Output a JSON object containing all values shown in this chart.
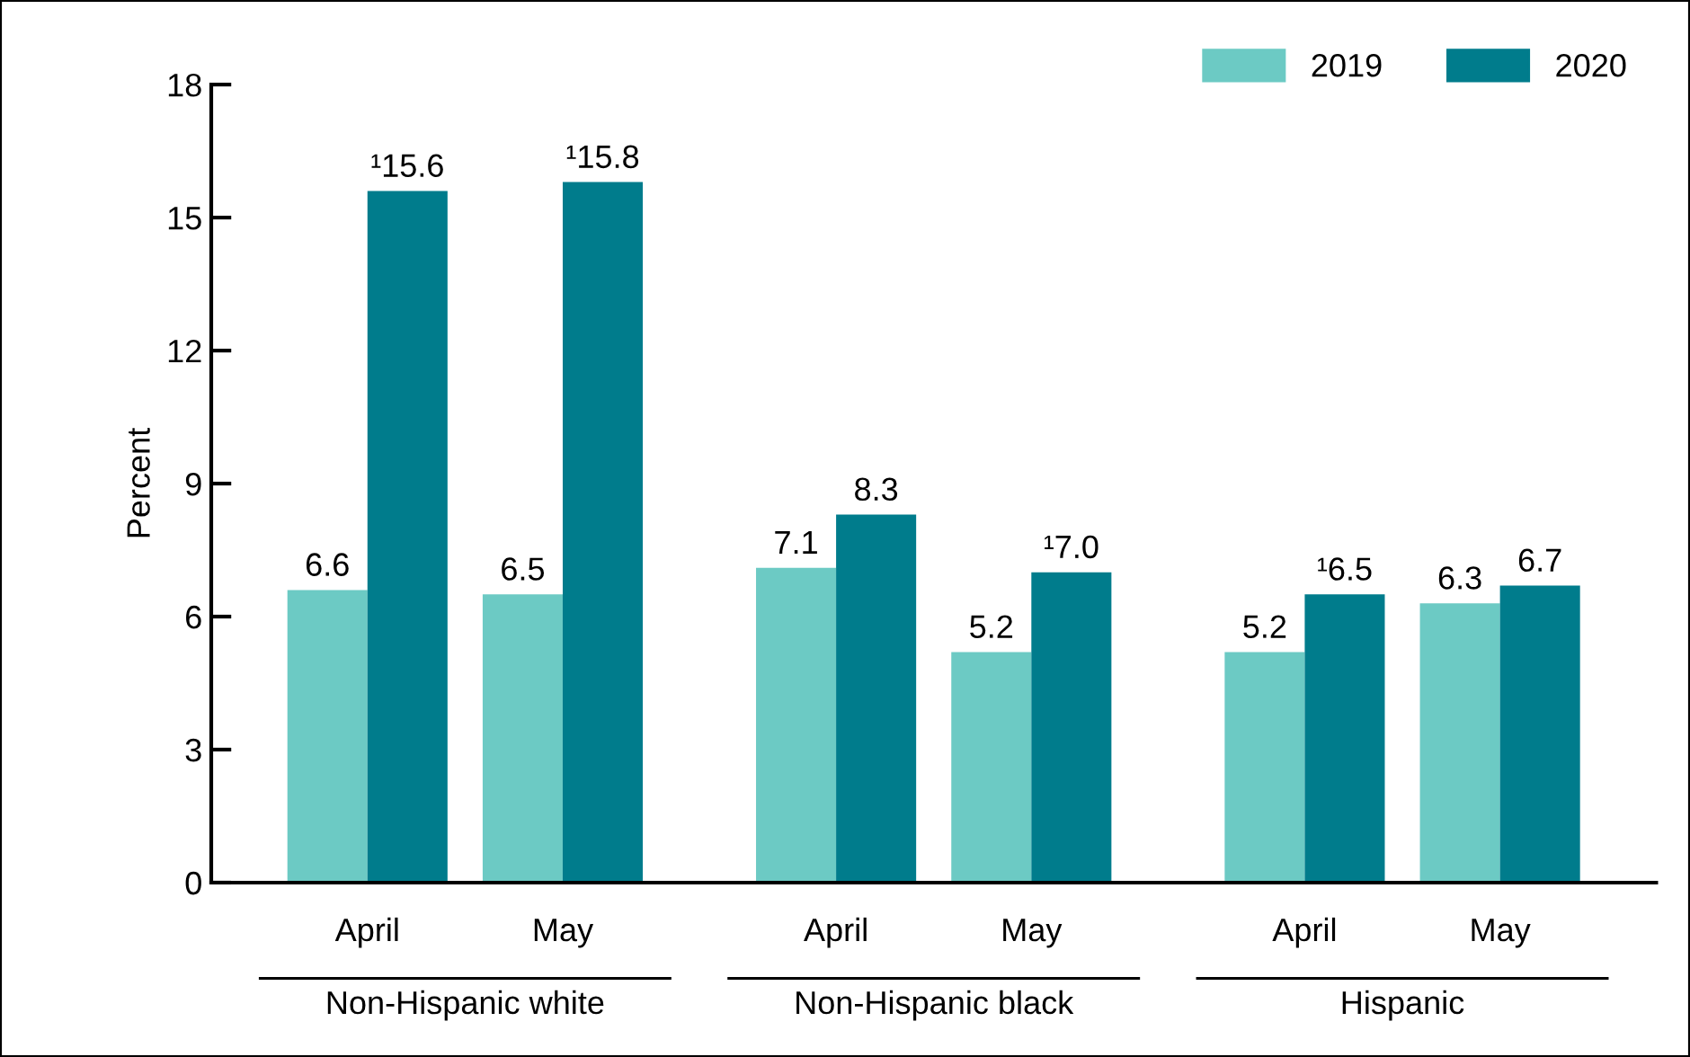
{
  "chart_data": {
    "type": "bar",
    "ylabel": "Percent",
    "categories": [
      "April",
      "May",
      "April",
      "May",
      "April",
      "May"
    ],
    "annotations": [
      "Non-Hispanic white",
      "Non-Hispanic black",
      "Hispanic"
    ],
    "series": [
      {
        "name": "2019",
        "color": "#6ccac4",
        "values": [
          6.6,
          6.5,
          7.1,
          5.2,
          5.2,
          6.3
        ],
        "value_labels": [
          "6.6",
          "6.5",
          "7.1",
          "5.2",
          "5.2",
          "6.3"
        ]
      },
      {
        "name": "2020",
        "color": "#007c8c",
        "values": [
          15.6,
          15.8,
          8.3,
          7.0,
          6.5,
          6.7
        ],
        "value_labels": [
          "¹15.6",
          "¹15.8",
          "8.3",
          "¹7.0",
          "¹6.5",
          "6.7"
        ]
      }
    ],
    "ylim": [
      0,
      18
    ],
    "yticks": [
      0,
      3,
      6,
      9,
      12,
      15,
      18
    ],
    "grid": false,
    "legend": "top right"
  }
}
